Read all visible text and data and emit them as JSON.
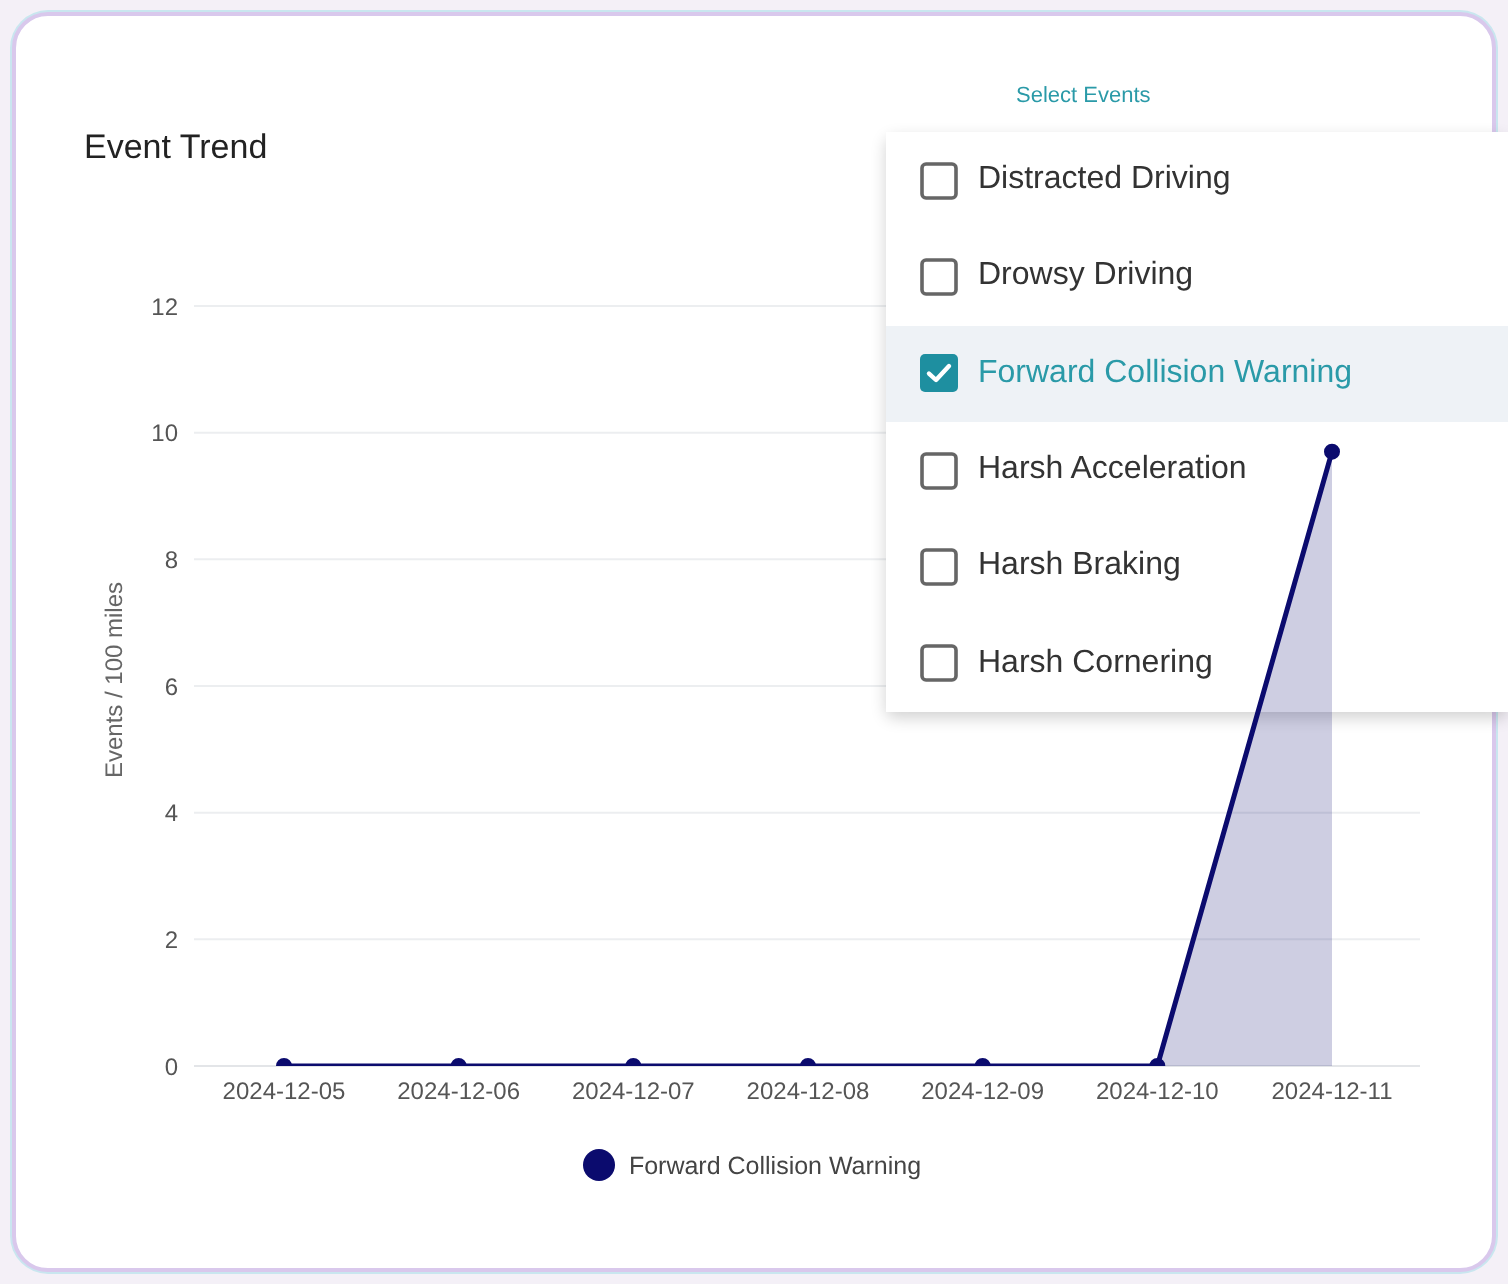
{
  "chart_data": {
    "type": "area",
    "title": "Event Trend",
    "ylabel": "Events / 100 miles",
    "categories": [
      "2024-12-05",
      "2024-12-06",
      "2024-12-07",
      "2024-12-08",
      "2024-12-09",
      "2024-12-10",
      "2024-12-11"
    ],
    "series": [
      {
        "name": "Forward Collision Warning",
        "color": "#0b0b6e",
        "values": [
          0,
          0,
          0,
          0,
          0,
          0,
          9.7
        ]
      }
    ],
    "ylim": [
      0,
      12
    ],
    "yticks": [
      0,
      2,
      4,
      6,
      8,
      10,
      12
    ],
    "grid": "y",
    "legend": "bottom",
    "marker": "circle",
    "line_style": "solid",
    "annotations": [
      "Select Events",
      "Distracted Driving",
      "Drowsy Driving",
      "Forward Collision Warning",
      "Harsh Acceleration",
      "Harsh Braking",
      "Harsh Cornering"
    ]
  }
}
